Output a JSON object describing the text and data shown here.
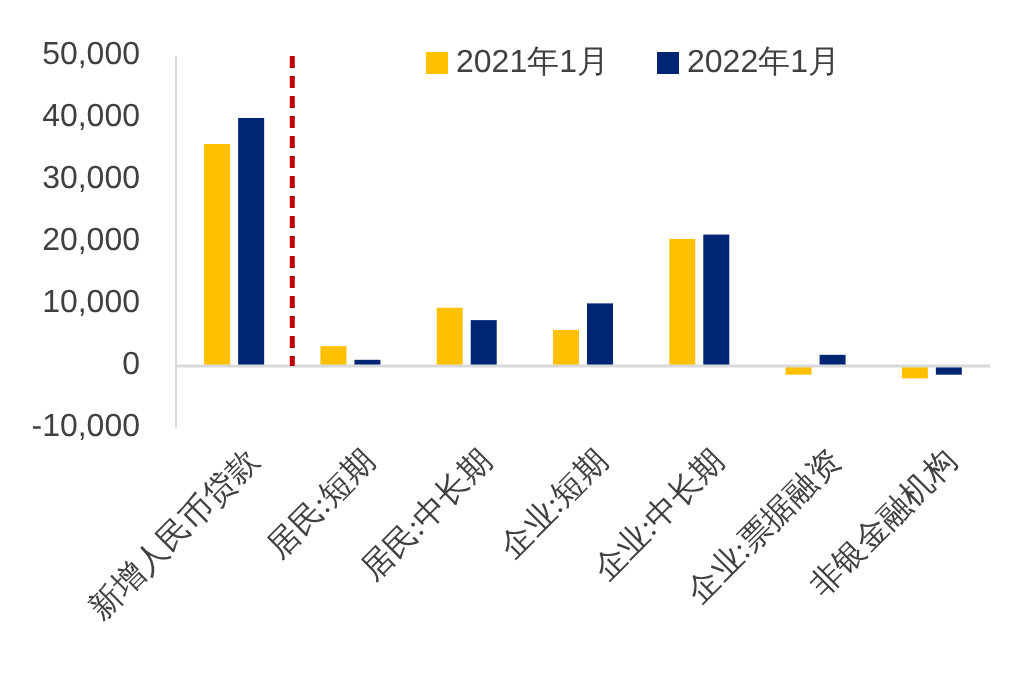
{
  "chart_data": {
    "type": "bar",
    "categories": [
      "新增人民币贷款",
      "居民:短期",
      "居民:中长期",
      "企业:短期",
      "企业:中长期",
      "企业:票据融资",
      "非银金融机构"
    ],
    "series": [
      {
        "name": "2021年1月",
        "color": "#ffc000",
        "values": [
          35800,
          3200,
          9400,
          5800,
          20500,
          -1400,
          -2000
        ]
      },
      {
        "name": "2022年1月",
        "color": "#002673",
        "values": [
          40000,
          1000,
          7400,
          10100,
          21200,
          1800,
          -1400
        ]
      }
    ],
    "ylim": [
      -10000,
      50000
    ],
    "yticks": [
      {
        "value": -10000,
        "label": "-10,000"
      },
      {
        "value": 0,
        "label": "0"
      },
      {
        "value": 10000,
        "label": "10,000"
      },
      {
        "value": 20000,
        "label": "20,000"
      },
      {
        "value": 30000,
        "label": "30,000"
      },
      {
        "value": 40000,
        "label": "40,000"
      },
      {
        "value": 50000,
        "label": "50,000"
      }
    ],
    "grid": false,
    "legend": "top"
  }
}
